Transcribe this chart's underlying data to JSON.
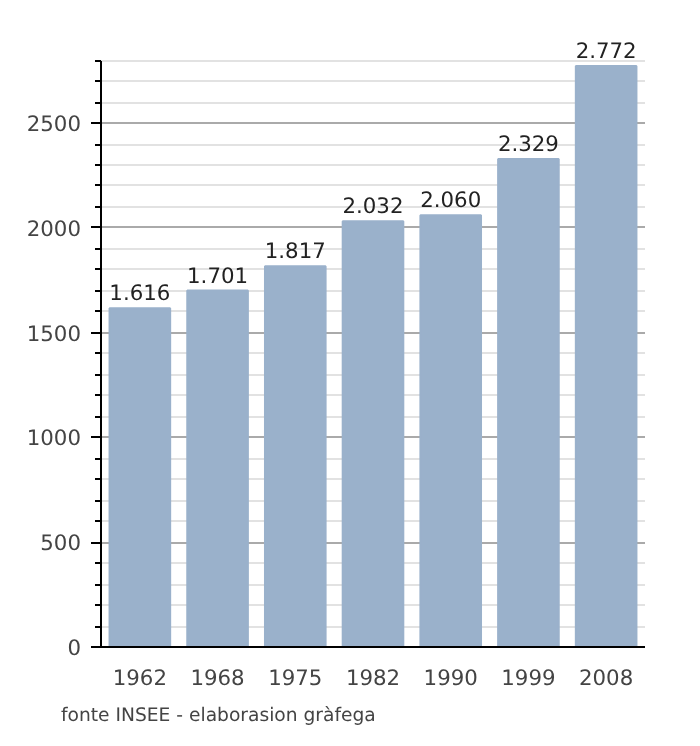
{
  "chart_data": {
    "type": "bar",
    "categories": [
      "1962",
      "1968",
      "1975",
      "1982",
      "1990",
      "1999",
      "2008"
    ],
    "values": [
      1616,
      1701,
      1817,
      2032,
      2060,
      2329,
      2772
    ],
    "value_labels": [
      "1.616",
      "1.701",
      "1.817",
      "2.032",
      "2.060",
      "2.329",
      "2.772"
    ],
    "color": "#9ab1cb",
    "ylim": [
      0,
      2800
    ],
    "yticks": [
      0,
      {
        "value": 100,
        "label": null
      },
      {
        "value": 200,
        "label": null
      },
      {
        "value": 300,
        "label": null
      },
      {
        "value": 400,
        "label": null
      },
      500,
      {
        "value": 600,
        "label": null
      },
      {
        "value": 700,
        "label": null
      },
      {
        "value": 800,
        "label": null
      },
      {
        "value": 900,
        "label": null
      },
      1000,
      {
        "value": 1100,
        "label": null
      },
      {
        "value": 1200,
        "label": null
      },
      {
        "value": 1300,
        "label": null
      },
      {
        "value": 1400,
        "label": null
      },
      1500,
      {
        "value": 1600,
        "label": null
      },
      {
        "value": 1700,
        "label": null
      },
      {
        "value": 1800,
        "label": null
      },
      {
        "value": 1900,
        "label": null
      },
      2000,
      {
        "value": 2100,
        "label": null
      },
      {
        "value": 2200,
        "label": null
      },
      {
        "value": 2300,
        "label": null
      },
      {
        "value": 2400,
        "label": null
      },
      2500,
      {
        "value": 2600,
        "label": null
      },
      {
        "value": 2700,
        "label": null
      },
      {
        "value": 2800,
        "label": null
      }
    ],
    "grid": "y",
    "annotations": [
      "fonte INSEE - elaborasion gràfega"
    ]
  }
}
